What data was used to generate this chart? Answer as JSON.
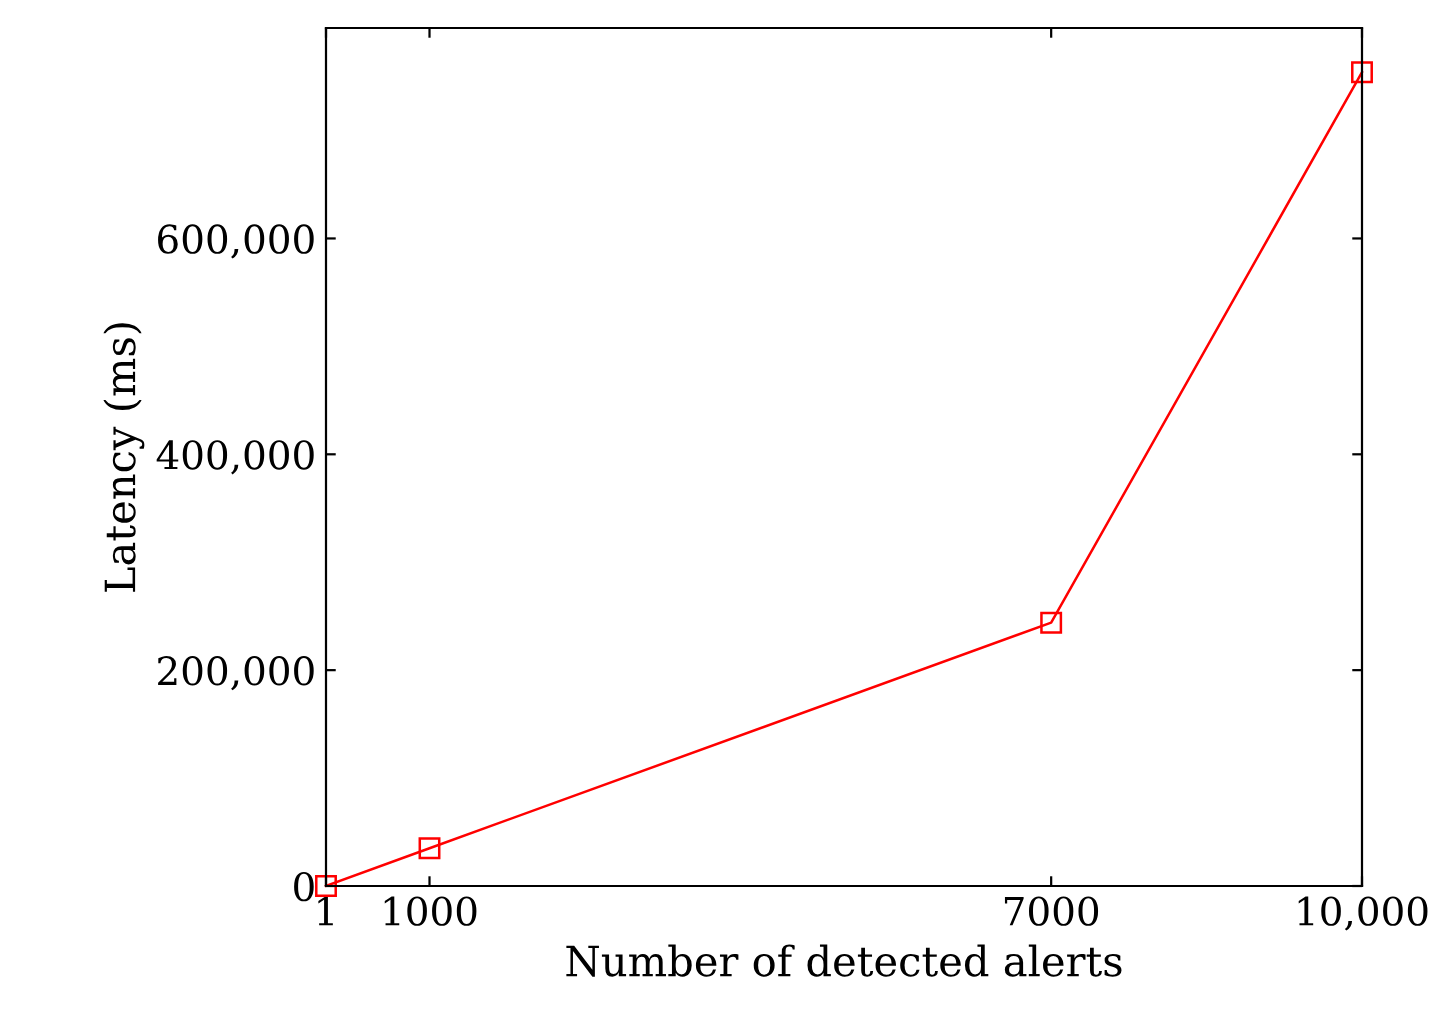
{
  "chart_data": {
    "type": "line",
    "xlabel": "Number of detected alerts",
    "ylabel": "Latency (ms)",
    "x": [
      1,
      1000,
      7000,
      10000
    ],
    "series": [
      {
        "color": "#ff0000",
        "values": [
          0,
          35000,
          244000,
          754000
        ]
      }
    ],
    "xlim": [
      1,
      10000
    ],
    "ylim": [
      0,
      795000
    ],
    "xticks": [
      1,
      1000,
      7000,
      {
        "value": 10000,
        "label": "10,000"
      }
    ],
    "yticks": [
      0,
      {
        "value": 200000,
        "label": "200,000"
      },
      {
        "value": 400000,
        "label": "400,000"
      },
      {
        "value": 600000,
        "label": "600,000"
      }
    ],
    "marker": "square",
    "line_style": "solid",
    "grid": false,
    "legend": false
  }
}
